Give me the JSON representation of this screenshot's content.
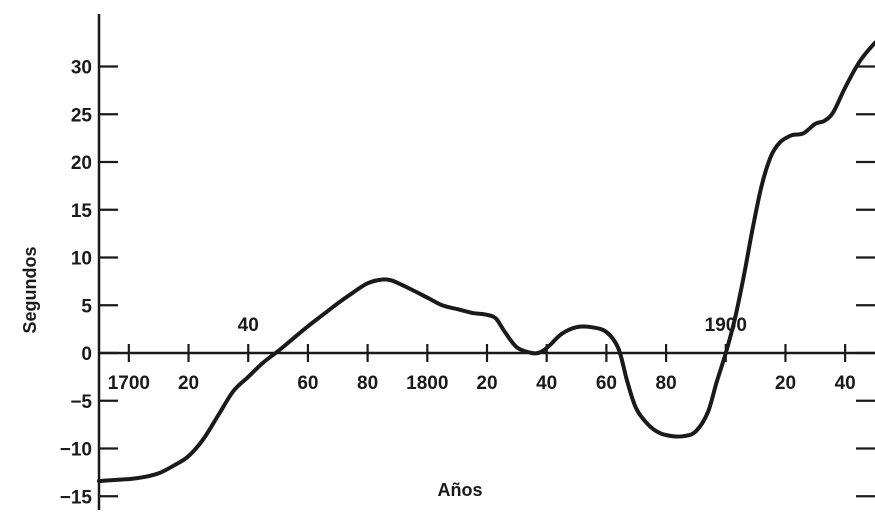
{
  "chart_data": {
    "type": "line",
    "title": "",
    "xlabel": "Años",
    "ylabel": "Segundos",
    "xlim": [
      1690,
      1950
    ],
    "ylim": [
      -15,
      35
    ],
    "grid": false,
    "y_ticks": [
      {
        "value": 30,
        "label": "30"
      },
      {
        "value": 25,
        "label": "25"
      },
      {
        "value": 20,
        "label": "20"
      },
      {
        "value": 15,
        "label": "15"
      },
      {
        "value": 10,
        "label": "10"
      },
      {
        "value": 5,
        "label": "5"
      },
      {
        "value": 0,
        "label": "0"
      },
      {
        "value": -5,
        "label": "−5"
      },
      {
        "value": -10,
        "label": "−10"
      },
      {
        "value": -15,
        "label": "−15"
      }
    ],
    "x_ticks": [
      {
        "value": 1700,
        "label": "1700",
        "side": "below"
      },
      {
        "value": 1720,
        "label": "20",
        "side": "below"
      },
      {
        "value": 1740,
        "label": "40",
        "side": "above"
      },
      {
        "value": 1760,
        "label": "60",
        "side": "below"
      },
      {
        "value": 1780,
        "label": "80",
        "side": "below"
      },
      {
        "value": 1800,
        "label": "1800",
        "side": "below"
      },
      {
        "value": 1820,
        "label": "20",
        "side": "below"
      },
      {
        "value": 1840,
        "label": "40",
        "side": "below"
      },
      {
        "value": 1860,
        "label": "60",
        "side": "below"
      },
      {
        "value": 1880,
        "label": "80",
        "side": "below"
      },
      {
        "value": 1900,
        "label": "1900",
        "side": "above"
      },
      {
        "value": 1920,
        "label": "20",
        "side": "below"
      },
      {
        "value": 1940,
        "label": "40",
        "side": "below"
      }
    ],
    "series": [
      {
        "x": [
          1690,
          1700,
          1705,
          1710,
          1715,
          1720,
          1725,
          1730,
          1735,
          1740,
          1745,
          1750,
          1755,
          1760,
          1765,
          1770,
          1775,
          1780,
          1785,
          1788,
          1791,
          1795,
          1800,
          1805,
          1810,
          1815,
          1820,
          1823,
          1826,
          1830,
          1835,
          1838,
          1841,
          1845,
          1850,
          1855,
          1860,
          1864,
          1867,
          1870,
          1874,
          1878,
          1882,
          1886,
          1890,
          1894,
          1897,
          1900,
          1903,
          1906,
          1909,
          1912,
          1915,
          1918,
          1922,
          1926,
          1930,
          1933,
          1936,
          1940,
          1945,
          1950
        ],
        "values": [
          -13.4,
          -13.2,
          -13.0,
          -12.6,
          -11.8,
          -10.8,
          -9.0,
          -6.5,
          -4.0,
          -2.5,
          -1.0,
          0.2,
          1.5,
          2.8,
          4.0,
          5.2,
          6.3,
          7.3,
          7.7,
          7.6,
          7.2,
          6.6,
          5.8,
          5.0,
          4.6,
          4.2,
          4.0,
          3.6,
          2.2,
          0.6,
          0.0,
          0.1,
          0.8,
          2.0,
          2.7,
          2.7,
          2.2,
          0.5,
          -3.0,
          -5.8,
          -7.5,
          -8.4,
          -8.7,
          -8.7,
          -8.2,
          -6.2,
          -3.0,
          0.0,
          3.5,
          8.0,
          13.0,
          17.5,
          20.5,
          22.0,
          22.8,
          23.0,
          24.0,
          24.3,
          25.2,
          27.8,
          30.6,
          32.5
        ]
      }
    ]
  }
}
